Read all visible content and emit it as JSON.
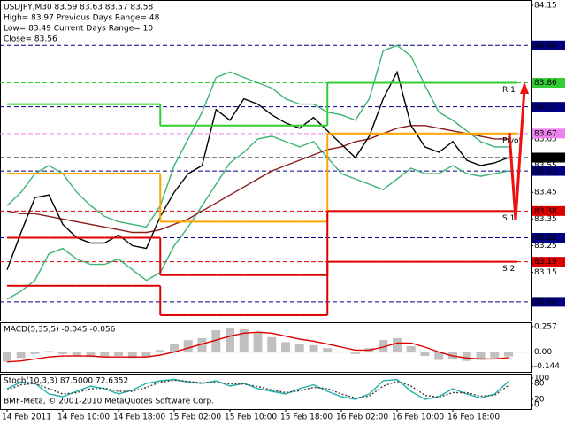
{
  "chart_data": [
    {
      "type": "line",
      "title": "USDJPY,M30  83.59 83.63 83.57 83.58",
      "annotations": [
        "High= 83.97   Previous Days Range= 48",
        "Low= 83.49   Current Days Range= 10",
        "Close= 83.56"
      ],
      "ylim": [
        82.97,
        84.17
      ],
      "yticks": [
        84.15,
        83.65,
        83.55,
        83.45,
        83.35,
        83.25,
        83.15
      ],
      "series": [
        {
          "color": "#3cb371",
          "values": [
            83.4,
            83.45,
            83.52,
            83.55,
            83.52,
            83.45,
            83.4,
            83.36,
            83.34,
            83.33,
            83.32,
            83.4,
            83.55,
            83.65,
            83.75,
            83.88,
            83.9,
            83.88,
            83.86,
            83.84,
            83.8,
            83.78,
            83.78,
            83.75,
            83.74,
            83.72,
            83.8,
            83.98,
            84.0,
            83.96,
            83.85,
            83.75,
            83.72,
            83.68,
            83.64,
            83.62,
            83.62
          ]
        },
        {
          "color": "#3cb371",
          "values": [
            83.05,
            83.08,
            83.12,
            83.22,
            83.24,
            83.2,
            83.18,
            83.18,
            83.2,
            83.16,
            83.12,
            83.15,
            83.25,
            83.32,
            83.4,
            83.48,
            83.56,
            83.6,
            83.65,
            83.66,
            83.64,
            83.62,
            83.64,
            83.58,
            83.52,
            83.5,
            83.48,
            83.46,
            83.5,
            83.54,
            83.52,
            83.52,
            83.55,
            83.52,
            83.51,
            83.52,
            83.53
          ]
        },
        {
          "color": "#8b1a1a",
          "values": [
            83.38,
            83.37,
            83.37,
            83.36,
            83.35,
            83.34,
            83.33,
            83.32,
            83.31,
            83.3,
            83.3,
            83.31,
            83.33,
            83.35,
            83.38,
            83.41,
            83.44,
            83.47,
            83.5,
            83.53,
            83.55,
            83.57,
            83.59,
            83.61,
            83.62,
            83.64,
            83.65,
            83.67,
            83.69,
            83.7,
            83.7,
            83.69,
            83.68,
            83.67,
            83.66,
            83.65,
            83.65
          ]
        },
        {
          "color": "#000000",
          "values": [
            83.16,
            83.3,
            83.43,
            83.44,
            83.33,
            83.28,
            83.26,
            83.26,
            83.29,
            83.25,
            83.24,
            83.36,
            83.45,
            83.52,
            83.55,
            83.76,
            83.72,
            83.8,
            83.78,
            83.74,
            83.71,
            83.69,
            83.73,
            83.68,
            83.63,
            83.58,
            83.66,
            83.8,
            83.9,
            83.7,
            83.62,
            83.6,
            83.64,
            83.57,
            83.55,
            83.56,
            83.58
          ]
        },
        {
          "name": "R 1",
          "color": "#32cd32",
          "step": true,
          "values": [
            83.78,
            83.78,
            83.78,
            83.78,
            83.78,
            83.78,
            83.78,
            83.78,
            83.78,
            83.78,
            83.78,
            83.7,
            83.7,
            83.7,
            83.7,
            83.7,
            83.7,
            83.7,
            83.7,
            83.7,
            83.7,
            83.7,
            83.7,
            83.86,
            83.86,
            83.86,
            83.86,
            83.86,
            83.86,
            83.86,
            83.86,
            83.86,
            83.86,
            83.86,
            83.86,
            83.86,
            83.86
          ]
        },
        {
          "name": "Pivot",
          "color": "#ffa500",
          "step": true,
          "values": [
            83.52,
            83.52,
            83.52,
            83.52,
            83.52,
            83.52,
            83.52,
            83.52,
            83.52,
            83.52,
            83.52,
            83.34,
            83.34,
            83.34,
            83.34,
            83.34,
            83.34,
            83.34,
            83.34,
            83.34,
            83.34,
            83.34,
            83.34,
            83.67,
            83.67,
            83.67,
            83.67,
            83.67,
            83.67,
            83.67,
            83.67,
            83.67,
            83.67,
            83.67,
            83.67,
            83.67,
            83.67
          ]
        },
        {
          "name": "S 1",
          "color": "#dd0000",
          "step": true,
          "values": [
            83.28,
            83.28,
            83.28,
            83.28,
            83.28,
            83.28,
            83.28,
            83.28,
            83.28,
            83.28,
            83.28,
            83.14,
            83.14,
            83.14,
            83.14,
            83.14,
            83.14,
            83.14,
            83.14,
            83.14,
            83.14,
            83.14,
            83.14,
            83.38,
            83.38,
            83.38,
            83.38,
            83.38,
            83.38,
            83.38,
            83.38,
            83.38,
            83.38,
            83.38,
            83.38,
            83.38,
            83.38
          ]
        },
        {
          "name": "S 2",
          "color": "#dd0000",
          "step": true,
          "values": [
            83.1,
            83.1,
            83.1,
            83.1,
            83.1,
            83.1,
            83.1,
            83.1,
            83.1,
            83.1,
            83.1,
            82.99,
            82.99,
            82.99,
            82.99,
            82.99,
            82.99,
            82.99,
            82.99,
            82.99,
            82.99,
            82.99,
            82.99,
            83.19,
            83.19,
            83.19,
            83.19,
            83.19,
            83.19,
            83.19,
            83.19,
            83.19,
            83.19,
            83.19,
            83.19,
            83.19,
            83.19
          ]
        }
      ],
      "levels": [
        {
          "price": 84,
          "label": "84.00",
          "color": "#000080"
        },
        {
          "price": 83.86,
          "color": "#32cd32"
        },
        {
          "price": 83.77,
          "color": "#000080"
        },
        {
          "price": 83.67,
          "color": "#ee82ee"
        },
        {
          "price": 83.58,
          "color": "#000000"
        },
        {
          "price": 83.53,
          "color": "#000080"
        },
        {
          "price": 83.38,
          "color": "#dd0000"
        },
        {
          "price": 83.28,
          "color": "#000080"
        },
        {
          "price": 83.19,
          "color": "#dd0000"
        },
        {
          "price": 83.04,
          "color": "#000080"
        }
      ]
    },
    {
      "type": "macd",
      "title": "MACD(5,35,5) -0.045 -0.056",
      "ylim": [
        -0.2,
        0.3
      ],
      "yticks": [
        0.257,
        {
          "value": 0,
          "label": "0.00"
        },
        -0.144
      ],
      "series": [
        {
          "style": "histogram",
          "color": "#c0c0c0",
          "values": [
            -0.1,
            -0.06,
            -0.02,
            0.01,
            -0.02,
            -0.04,
            -0.05,
            -0.05,
            -0.04,
            -0.06,
            -0.05,
            0.02,
            0.08,
            0.12,
            0.14,
            0.22,
            0.24,
            0.23,
            0.2,
            0.15,
            0.1,
            0.08,
            0.07,
            0.04,
            0.0,
            -0.02,
            0.04,
            0.12,
            0.14,
            0.06,
            -0.04,
            -0.08,
            -0.07,
            -0.09,
            -0.08,
            -0.06,
            -0.045
          ]
        },
        {
          "color": "#dd0000",
          "values": [
            -0.1,
            -0.09,
            -0.07,
            -0.05,
            -0.04,
            -0.04,
            -0.04,
            -0.05,
            -0.05,
            -0.05,
            -0.05,
            -0.03,
            0.0,
            0.04,
            0.08,
            0.12,
            0.16,
            0.19,
            0.2,
            0.19,
            0.16,
            0.13,
            0.11,
            0.08,
            0.05,
            0.02,
            0.02,
            0.05,
            0.09,
            0.09,
            0.05,
            0.0,
            -0.04,
            -0.06,
            -0.07,
            -0.07,
            -0.056
          ]
        }
      ]
    },
    {
      "type": "line",
      "title": "Stoch(10,3,3) 87.5000 72.6352",
      "annotations": [
        "BMF-Meta, © 2001-2010 MetaQuotes Software Corp."
      ],
      "categories": [
        "14 Feb 2011",
        null,
        null,
        null,
        "14 Feb 10:00",
        null,
        null,
        null,
        "14 Feb 18:00",
        null,
        null,
        null,
        "15 Feb 02:00",
        null,
        null,
        null,
        "15 Feb 10:00",
        null,
        null,
        null,
        "15 Feb 18:00",
        null,
        null,
        null,
        "16 Feb 02:00",
        null,
        null,
        null,
        "16 Feb 10:00",
        null,
        null,
        null,
        "16 Feb 18:00",
        null,
        null,
        null,
        null
      ],
      "ylim": [
        0,
        100
      ],
      "yticks": [
        100,
        80,
        20,
        0
      ],
      "series": [
        {
          "color": "#20b2aa",
          "values": [
            60,
            85,
            80,
            40,
            30,
            50,
            70,
            60,
            40,
            55,
            80,
            90,
            95,
            85,
            80,
            90,
            70,
            80,
            60,
            50,
            40,
            60,
            75,
            50,
            30,
            20,
            40,
            90,
            95,
            50,
            20,
            30,
            60,
            40,
            25,
            40,
            87.5
          ]
        },
        {
          "color": "#404040",
          "dashed": true,
          "values": [
            55,
            75,
            80,
            60,
            40,
            45,
            60,
            62,
            50,
            50,
            65,
            85,
            92,
            88,
            82,
            85,
            78,
            78,
            68,
            55,
            45,
            52,
            65,
            60,
            40,
            25,
            32,
            70,
            88,
            70,
            35,
            28,
            45,
            45,
            32,
            35,
            72.6352
          ]
        }
      ]
    }
  ]
}
